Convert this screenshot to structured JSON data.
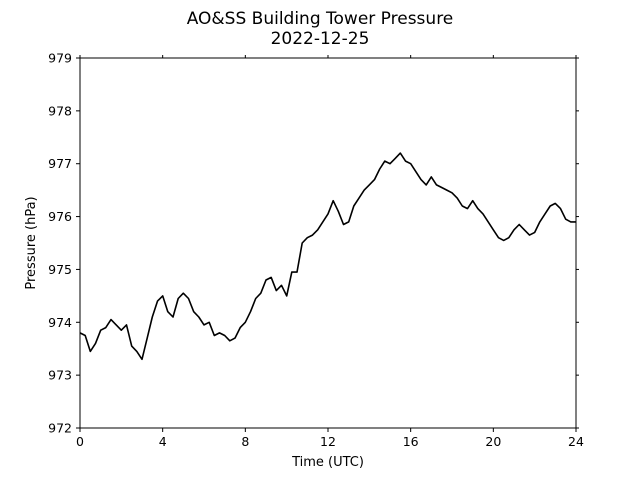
{
  "chart_data": {
    "type": "line",
    "title": "AO&SS Building Tower Pressure",
    "subtitle": "2022-12-25",
    "xlabel": "Time (UTC)",
    "ylabel": "Pressure (hPa)",
    "xlim": [
      0,
      24
    ],
    "ylim": [
      972,
      979
    ],
    "xticks": [
      0,
      4,
      8,
      12,
      16,
      20,
      24
    ],
    "yticks": [
      972,
      973,
      974,
      975,
      976,
      977,
      978,
      979
    ],
    "grid": false,
    "line_color": "#000000",
    "series": [
      {
        "x": [
          0,
          0.25,
          0.5,
          0.75,
          1.0,
          1.25,
          1.5,
          1.75,
          2.0,
          2.25,
          2.5,
          2.75,
          3.0,
          3.25,
          3.5,
          3.75,
          4.0,
          4.25,
          4.5,
          4.75,
          5.0,
          5.25,
          5.5,
          5.75,
          6.0,
          6.25,
          6.5,
          6.75,
          7.0,
          7.25,
          7.5,
          7.75,
          8.0,
          8.25,
          8.5,
          8.75,
          9.0,
          9.25,
          9.5,
          9.75,
          10.0,
          10.25,
          10.5,
          10.75,
          11.0,
          11.25,
          11.5,
          11.75,
          12.0,
          12.25,
          12.5,
          12.75,
          13.0,
          13.25,
          13.5,
          13.75,
          14.0,
          14.25,
          14.5,
          14.75,
          15.0,
          15.25,
          15.5,
          15.75,
          16.0,
          16.25,
          16.5,
          16.75,
          17.0,
          17.25,
          17.5,
          17.75,
          18.0,
          18.25,
          18.5,
          18.75,
          19.0,
          19.25,
          19.5,
          19.75,
          20.0,
          20.25,
          20.5,
          20.75,
          21.0,
          21.25,
          21.5,
          21.75,
          22.0,
          22.25,
          22.5,
          22.75,
          23.0,
          23.25,
          23.5,
          23.75,
          24.0
        ],
        "y": [
          973.8,
          973.75,
          973.45,
          973.6,
          973.85,
          973.9,
          974.05,
          973.95,
          973.85,
          973.95,
          973.55,
          973.45,
          973.3,
          973.7,
          974.1,
          974.4,
          974.5,
          974.2,
          974.1,
          974.45,
          974.55,
          974.45,
          974.2,
          974.1,
          973.95,
          974.0,
          973.75,
          973.8,
          973.75,
          973.65,
          973.7,
          973.9,
          974.0,
          974.2,
          974.45,
          974.55,
          974.8,
          974.85,
          974.6,
          974.7,
          974.5,
          974.95,
          974.95,
          975.5,
          975.6,
          975.65,
          975.75,
          975.9,
          976.05,
          976.3,
          976.1,
          975.85,
          975.9,
          976.2,
          976.35,
          976.5,
          976.6,
          976.7,
          976.9,
          977.05,
          977.0,
          977.1,
          977.2,
          977.05,
          977.0,
          976.85,
          976.7,
          976.6,
          976.75,
          976.6,
          976.55,
          976.5,
          976.45,
          976.35,
          976.2,
          976.15,
          976.3,
          976.15,
          976.05,
          975.9,
          975.75,
          975.6,
          975.55,
          975.6,
          975.75,
          975.85,
          975.75,
          975.65,
          975.7,
          975.9,
          976.05,
          976.2,
          976.25,
          976.15,
          975.95,
          975.9,
          975.9
        ]
      }
    ]
  }
}
